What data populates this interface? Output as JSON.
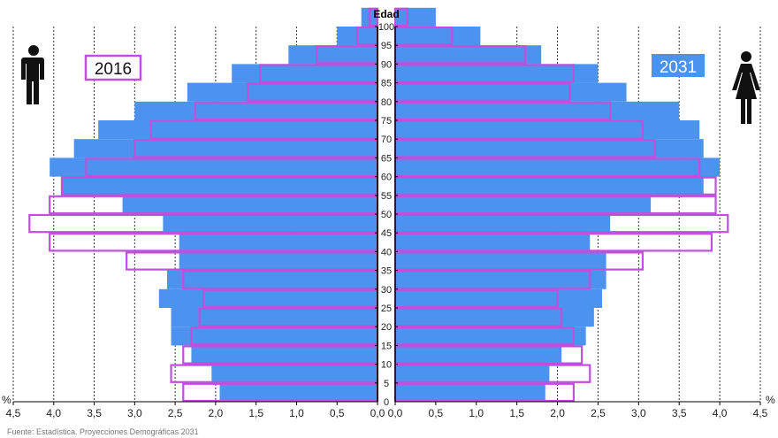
{
  "chart_data": {
    "type": "bar",
    "subtype": "population-pyramid",
    "title": "Edad",
    "unit_label": "%",
    "age_ticks": [
      "0",
      "5",
      "10",
      "15",
      "20",
      "25",
      "30",
      "35",
      "40",
      "45",
      "50",
      "55",
      "60",
      "65",
      "70",
      "75",
      "80",
      "85",
      "90",
      "95",
      "100"
    ],
    "x_ticks_left": [
      "4,5",
      "4,0",
      "3,5",
      "3,0",
      "2,5",
      "2,0",
      "1,5",
      "1,0",
      "0,5",
      "0,0"
    ],
    "x_ticks_right": [
      "0,0",
      "0,5",
      "1,0",
      "1,5",
      "2,0",
      "2,5",
      "3,0",
      "3,5",
      "4,0",
      "4,5"
    ],
    "xlim": [
      0,
      4.5
    ],
    "age_groups": [
      "0-4",
      "5-9",
      "10-14",
      "15-19",
      "20-24",
      "25-29",
      "30-34",
      "35-39",
      "40-44",
      "45-49",
      "50-54",
      "55-59",
      "60-64",
      "65-69",
      "70-74",
      "75-79",
      "80-84",
      "85-89",
      "90-94",
      "95-99",
      "100+"
    ],
    "series": [
      {
        "name": "2016",
        "role": "outline",
        "men": [
          2.4,
          2.55,
          2.4,
          2.3,
          2.2,
          2.15,
          2.4,
          3.1,
          4.05,
          4.3,
          4.05,
          3.9,
          3.6,
          3.0,
          2.8,
          2.25,
          1.6,
          1.45,
          0.75,
          0.25,
          0.1
        ],
        "women": [
          2.2,
          2.4,
          2.3,
          2.2,
          2.05,
          2.0,
          2.4,
          3.05,
          3.9,
          4.1,
          3.95,
          3.95,
          3.75,
          3.2,
          3.05,
          2.65,
          2.15,
          2.2,
          1.6,
          0.7,
          0.15
        ]
      },
      {
        "name": "2031",
        "role": "filled",
        "men": [
          1.95,
          2.05,
          2.3,
          2.55,
          2.55,
          2.7,
          2.6,
          2.45,
          2.45,
          2.65,
          3.15,
          3.9,
          4.05,
          3.75,
          3.45,
          3.0,
          2.35,
          1.8,
          1.1,
          0.5,
          0.2
        ],
        "women": [
          1.85,
          1.9,
          2.05,
          2.35,
          2.45,
          2.55,
          2.6,
          2.6,
          2.4,
          2.65,
          3.15,
          3.8,
          4.0,
          3.8,
          3.75,
          3.5,
          2.85,
          2.5,
          1.8,
          1.05,
          0.5
        ]
      }
    ],
    "legend": {
      "outline_label": "2016",
      "filled_label": "2031"
    },
    "colors": {
      "filled": "#4c93f0",
      "outline": "#c04fdd",
      "grid": "#333333"
    },
    "grid": true
  },
  "icons": {
    "left": "man-icon",
    "right": "woman-icon"
  },
  "source_text": "Fuente: Estadística. Proyecciones Demográficas 2031"
}
